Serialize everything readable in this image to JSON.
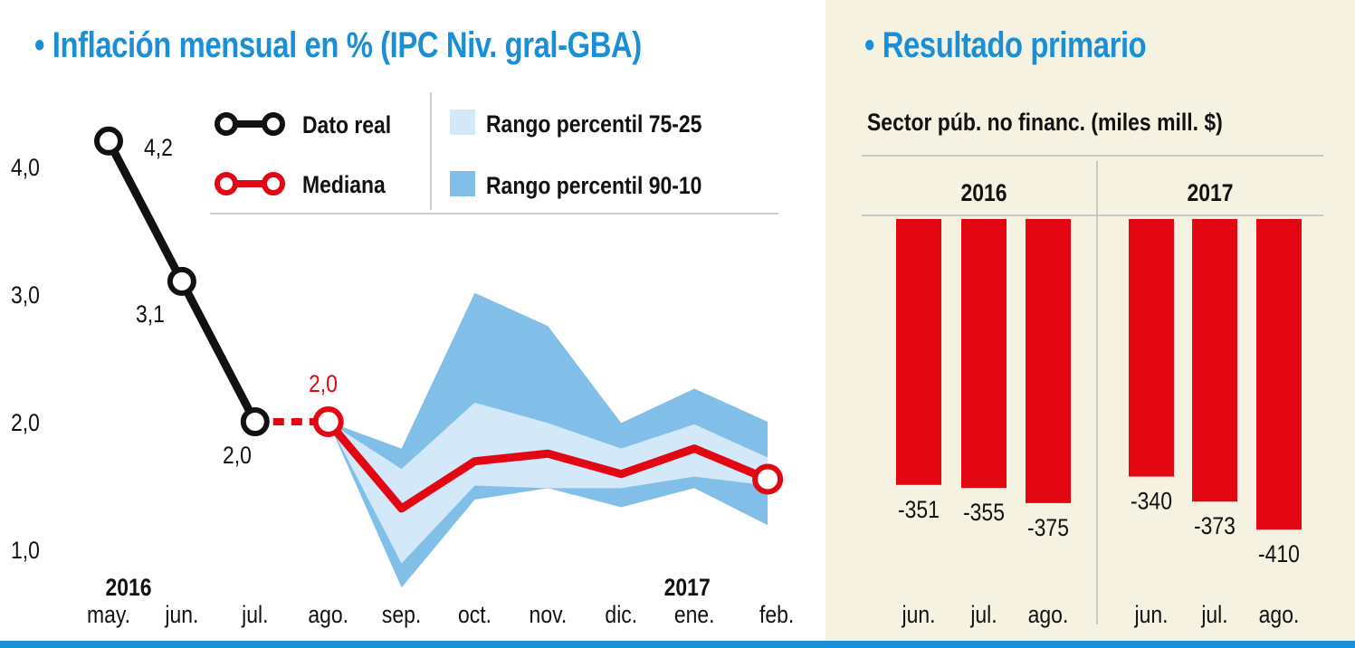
{
  "chart_data": [
    {
      "type": "line",
      "title": "• Inflación mensual en % (IPC Niv. gral-GBA)",
      "x": [
        "may.",
        "jun.",
        "jul.",
        "ago.",
        "sep.",
        "oct.",
        "nov.",
        "dic.",
        "ene.",
        "feb."
      ],
      "year_labels": [
        {
          "at": "may.",
          "label": "2016"
        },
        {
          "at": "ene.",
          "label": "2017"
        }
      ],
      "yticks": [
        "1,0",
        "2,0",
        "3,0",
        "4,0"
      ],
      "ylim": [
        1,
        4.3
      ],
      "legend": {
        "real": "Dato real",
        "median": "Mediana",
        "p7525": "Rango percentil 75-25",
        "p9010": "Rango percentil 90-10",
        "placement": "top"
      },
      "series": [
        {
          "name": "Dato real",
          "values": [
            4.2,
            3.1,
            2.0,
            2.0,
            null,
            null,
            null,
            null,
            null,
            null
          ],
          "labels": [
            "4,2",
            "3,1",
            "2,0"
          ],
          "color": "#111111"
        },
        {
          "name": "Mediana",
          "values": [
            null,
            null,
            null,
            2.0,
            1.32,
            1.69,
            1.75,
            1.59,
            1.79,
            1.55
          ],
          "labels": [
            "2,0"
          ],
          "color": "#e30613"
        }
      ],
      "bands": [
        {
          "name": "Rango percentil 90-10",
          "upper": [
            null,
            null,
            null,
            2.0,
            1.79,
            3.01,
            2.75,
            1.99,
            2.26,
            2.0
          ],
          "lower": [
            null,
            null,
            null,
            2.0,
            0.7,
            1.39,
            1.48,
            1.33,
            1.48,
            1.19
          ],
          "color": "#82bfe8"
        },
        {
          "name": "Rango percentil 75-25",
          "upper": [
            null,
            null,
            null,
            2.0,
            1.63,
            2.15,
            1.99,
            1.79,
            1.98,
            1.72
          ],
          "lower": [
            null,
            null,
            null,
            2.0,
            0.89,
            1.5,
            1.48,
            1.48,
            1.57,
            1.5
          ],
          "color": "#d3e8f8"
        }
      ]
    },
    {
      "type": "bar",
      "title": "• Resultado primario",
      "subtitle": "Sector púb. no financ. (miles mill. $)",
      "groups": [
        "2016",
        "2017"
      ],
      "categories": [
        "jun.",
        "jul.",
        "ago."
      ],
      "values": [
        [
          -351,
          -355,
          -375
        ],
        [
          -340,
          -373,
          -410
        ]
      ],
      "labels": [
        [
          "-351",
          "-355",
          "-375"
        ],
        [
          "-340",
          "-373",
          "-410"
        ]
      ],
      "color": "#e30613"
    }
  ]
}
